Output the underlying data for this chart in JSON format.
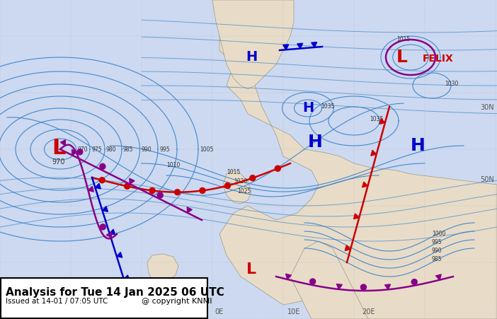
{
  "title": "Analysis for Tue 14 Jan 2025 06 UTC",
  "subtitle": "Issued at 14-01 / 07:05 UTC",
  "copyright": "@ copyright KNMI",
  "bg_ocean": "#ccd9f0",
  "bg_land": "#e8dcc8",
  "isobar_color": "#4488cc",
  "front_warm_color": "#cc0000",
  "front_cold_color": "#0000cc",
  "front_occluded_color": "#880088",
  "low_color": "#cc0000",
  "high_color": "#0000cc",
  "label_box_bg": "#ffffff",
  "label_box_border": "#000000"
}
